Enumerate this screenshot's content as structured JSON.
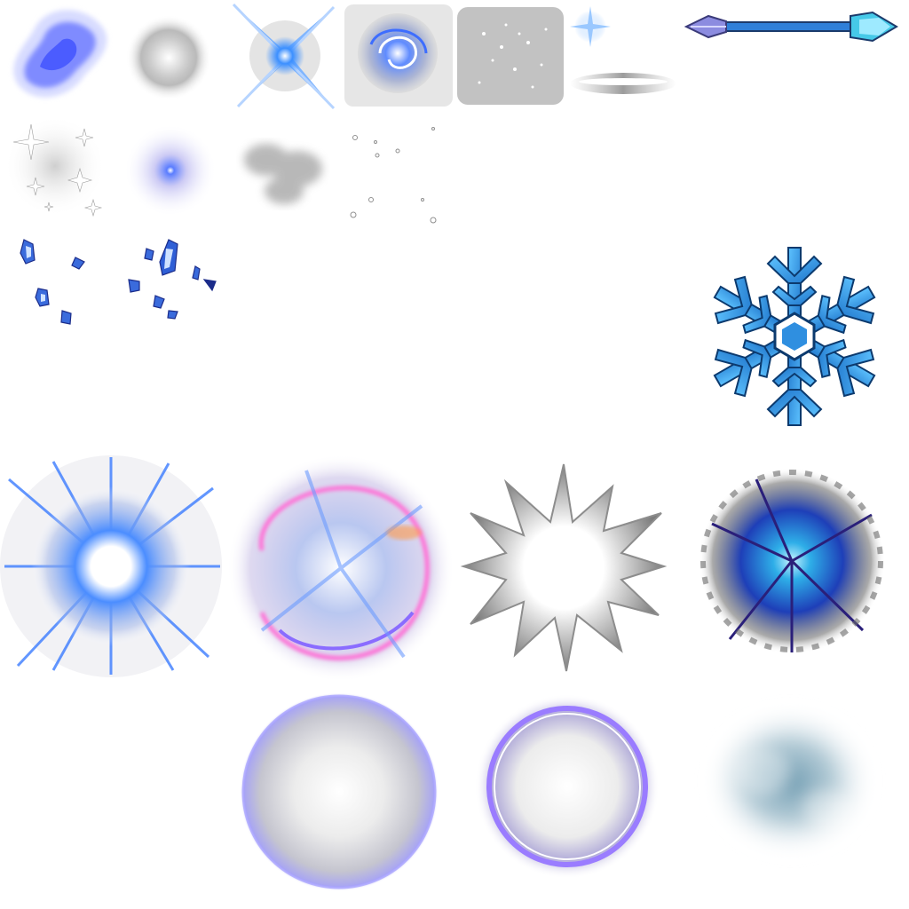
{
  "atlas": {
    "background": "#ffffff",
    "palette": {
      "ice_blue": "#3f8cff",
      "deep_blue": "#1e3fb8",
      "violet": "#8a7cff",
      "pink": "#ff7ad9",
      "grey": "#9a9a9a",
      "frost": "#5d8fa3"
    },
    "sprites": [
      "ice-wisp",
      "soft-glow",
      "cross-flare",
      "vortex",
      "dust-cloud",
      "small-star",
      "lens-streak",
      "ice-arrow",
      "sparkle-field",
      "blue-dot-glow",
      "smoke-puff",
      "bubbles",
      "ice-shards-a",
      "ice-shards-b",
      "snowflake",
      "blue-burst",
      "magic-swirl",
      "grey-explosion",
      "dark-burst",
      "glow-orb",
      "ring-orb",
      "frost-fog"
    ]
  }
}
